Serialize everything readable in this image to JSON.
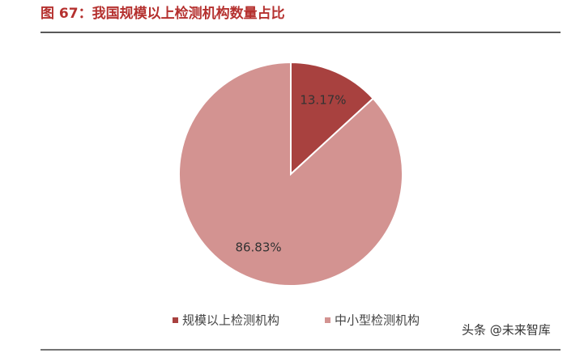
{
  "chart_data": {
    "type": "pie",
    "title": "图 67：我国规模以上检测机构数量占比",
    "categories": [
      "规模以上检测机构",
      "中小型检测机构"
    ],
    "values": [
      13.17,
      86.83
    ],
    "value_labels": [
      "13.17%",
      "86.83%"
    ],
    "colors": [
      "#a8413f",
      "#d39391"
    ],
    "legend": "bottom"
  },
  "watermark": "头条 @未来智库"
}
